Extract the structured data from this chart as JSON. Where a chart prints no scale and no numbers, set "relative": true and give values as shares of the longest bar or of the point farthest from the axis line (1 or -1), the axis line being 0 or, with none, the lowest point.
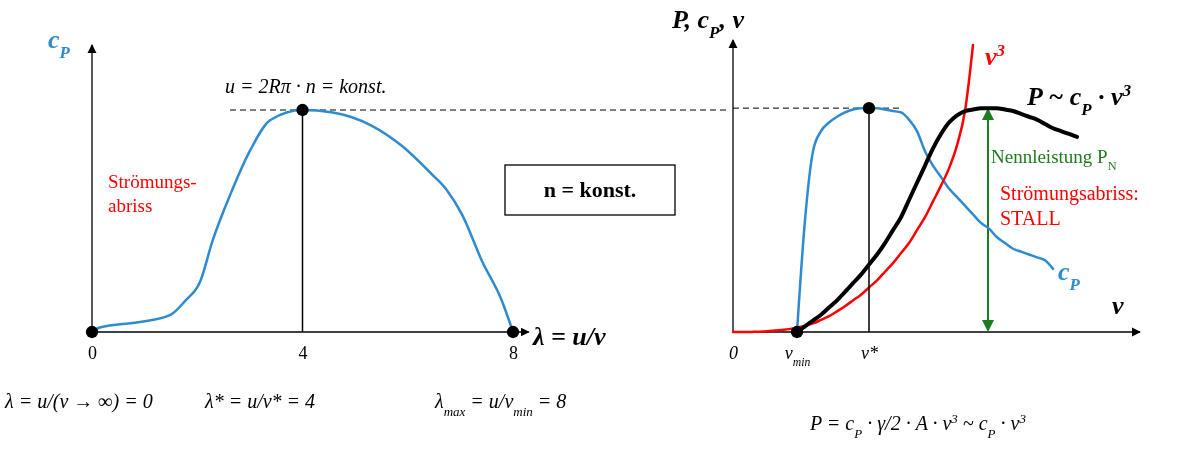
{
  "chart_data": [
    {
      "type": "line",
      "relative": true,
      "xlabel": "λ = u/v",
      "ylabel": "c$_{P}$",
      "xlim": [
        0,
        8.3
      ],
      "xticks": [
        0,
        4,
        8
      ],
      "series": [
        {
          "color": "#2e8bd0",
          "x": [
            0,
            0.15,
            0.91,
            1.49,
            1.77,
            2.06,
            2.29,
            2.63,
            3.01,
            3.39,
            4,
            4.55,
            5.31,
            5.88,
            6.46,
            6.74,
            7.03,
            7.41,
            7.79,
            8
          ],
          "values": [
            0,
            0.02,
            0.045,
            0.077,
            0.14,
            0.23,
            0.41,
            0.62,
            0.82,
            0.955,
            1,
            0.99,
            0.93,
            0.84,
            0.71,
            0.64,
            0.53,
            0.32,
            0.14,
            0
          ]
        },
        {
          "type": "scatter",
          "marker": "circle",
          "color": "#000000",
          "x": [
            0,
            4,
            8
          ],
          "values": [
            0,
            1,
            0
          ]
        }
      ],
      "ref_lines": [
        {
          "axis": "x",
          "value": 4,
          "color": "#000000"
        },
        {
          "axis": "y",
          "value": 1,
          "color": "#000000",
          "line_style": "dashed"
        }
      ],
      "annotations": [
        "u = 2Rπ · n = konst.",
        "Strömungs-abriss",
        "n = konst.",
        "λ = u/(v → ∞) = 0",
        "λ* = u/v* = 4",
        "λ$_{max}$ = u/v$_{min}$ = 8"
      ]
    },
    {
      "type": "line",
      "relative": true,
      "xlabel": "v",
      "ylabel": "P, c$_{P}$, v",
      "categories": [
        "0",
        null,
        null,
        null,
        null,
        null,
        null,
        null,
        "v$_{min}$",
        null,
        null,
        null,
        null,
        null,
        null,
        null,
        null,
        "v*",
        null,
        null,
        null,
        null,
        null,
        null,
        null,
        null,
        null,
        null,
        null,
        null,
        null,
        null,
        null,
        null,
        null,
        null,
        null,
        null,
        null,
        null,
        null,
        null,
        null,
        null,
        null,
        null,
        null,
        null,
        null,
        null,
        null
      ],
      "series": [
        {
          "name": "c$_{P}$",
          "color": "#2e8bd0",
          "values": [
            null,
            null,
            null,
            null,
            null,
            null,
            null,
            null,
            0,
            0.39,
            0.63,
            0.7,
            0.73,
            0.75,
            0.765,
            0.775,
            0.78,
            0.78,
            0.78,
            0.775,
            0.77,
            0.765,
            0.74,
            0.7,
            0.63,
            0.58,
            0.54,
            0.5,
            0.47,
            0.44,
            0.41,
            0.38,
            0.36,
            0.33,
            0.31,
            0.29,
            0.28,
            0.27,
            0.26,
            0.25,
            0.22,
            null,
            null,
            null,
            null,
            null,
            null,
            null,
            null,
            null,
            null
          ]
        },
        {
          "name": "v$^{3}$",
          "color": "#ff0000",
          "values": [
            0,
            0,
            0,
            0.001,
            0.002,
            0.004,
            0.007,
            0.01,
            0.015,
            0.022,
            0.03,
            0.042,
            0.055,
            0.072,
            0.09,
            0.11,
            0.13,
            0.155,
            0.18,
            0.21,
            0.24,
            0.275,
            0.31,
            0.355,
            0.4,
            0.455,
            0.51,
            0.57,
            0.65,
            0.77,
            1,
            null,
            null,
            null,
            null,
            null,
            null,
            null,
            null,
            null,
            null,
            null,
            null,
            null,
            null,
            null,
            null,
            null,
            null,
            null,
            null
          ]
        },
        {
          "name": "P ~ c$_{P}$ · v$^{3}$",
          "color": "#000000",
          "values": [
            null,
            null,
            null,
            null,
            null,
            null,
            null,
            null,
            0,
            0.02,
            0.04,
            0.06,
            0.085,
            0.11,
            0.14,
            0.17,
            0.2,
            0.235,
            0.27,
            0.31,
            0.355,
            0.4,
            0.46,
            0.52,
            0.58,
            0.64,
            0.69,
            0.73,
            0.755,
            0.77,
            0.775,
            0.78,
            0.78,
            0.78,
            0.775,
            0.77,
            0.76,
            0.75,
            0.74,
            0.725,
            0.71,
            0.7,
            0.69,
            0.68,
            null,
            null,
            null,
            null,
            null,
            null,
            null
          ]
        },
        {
          "type": "lollipop",
          "marker": "circle",
          "color": "#000000",
          "values": [
            null,
            null,
            null,
            null,
            null,
            null,
            null,
            null,
            0,
            null,
            null,
            null,
            null,
            null,
            null,
            null,
            null,
            0.78,
            null,
            null,
            null,
            null,
            null,
            null,
            null,
            null,
            null,
            null,
            null,
            null,
            null,
            null,
            null,
            null,
            null,
            null,
            null,
            null,
            null,
            null,
            null,
            null,
            null,
            null,
            null,
            null,
            null,
            null,
            null,
            null,
            null
          ]
        }
      ],
      "ref_lines": [
        {
          "axis": "y",
          "value": 0.78,
          "color": "#000000",
          "line_style": "dashed"
        }
      ],
      "annotations": [
        "Nennleistung P$_{N}$",
        "Strömungsabriss: STALL",
        "P = c$_{P}$ · γ/2 · A · v$^{3}$ ~ c$_{P}$ · v$^{3}$"
      ]
    }
  ]
}
